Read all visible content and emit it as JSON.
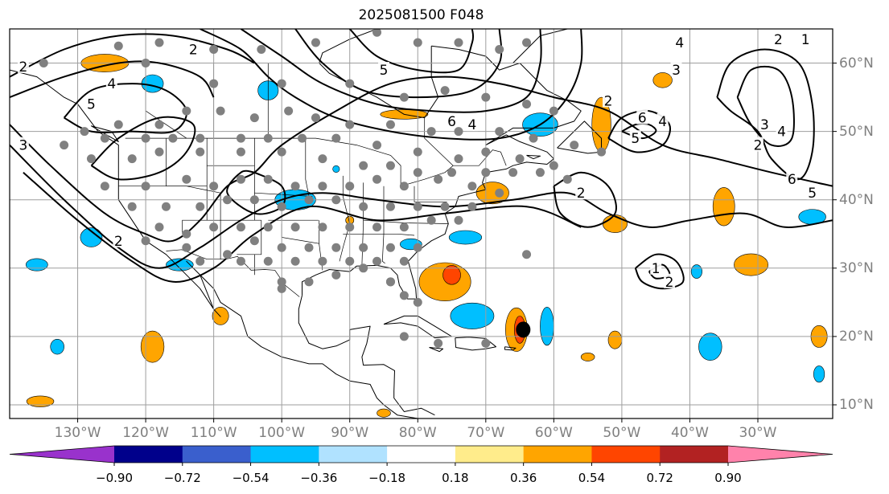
{
  "title": "2025081500 F048",
  "axes": {
    "longitude_ticks": [
      {
        "value": -130,
        "label": "130°W"
      },
      {
        "value": -120,
        "label": "120°W"
      },
      {
        "value": -110,
        "label": "110°W"
      },
      {
        "value": -100,
        "label": "100°W"
      },
      {
        "value": -90,
        "label": "90°W"
      },
      {
        "value": -80,
        "label": "80°W"
      },
      {
        "value": -70,
        "label": "70°W"
      },
      {
        "value": -60,
        "label": "60°W"
      },
      {
        "value": -50,
        "label": "50°W"
      },
      {
        "value": -40,
        "label": "40°W"
      },
      {
        "value": -30,
        "label": "30°W"
      }
    ],
    "latitude_ticks": [
      {
        "value": 60,
        "label": "60°N"
      },
      {
        "value": 50,
        "label": "50°N"
      },
      {
        "value": 40,
        "label": "40°N"
      },
      {
        "value": 30,
        "label": "30°N"
      },
      {
        "value": 20,
        "label": "20°N"
      },
      {
        "value": 10,
        "label": "10°N"
      }
    ],
    "lon_range": [
      -140,
      -19
    ],
    "lat_range": [
      8,
      65
    ],
    "grid": true,
    "tick_color": "#7f7f7f"
  },
  "colorbar": {
    "boundaries": [
      "−0.90",
      "−0.72",
      "−0.54",
      "−0.36",
      "−0.18",
      "0.18",
      "0.36",
      "0.54",
      "0.72",
      "0.90"
    ],
    "colors": [
      "#9932cc",
      "#00008b",
      "#3a5fcd",
      "#00bfff",
      "#b0e2ff",
      "#ffffff",
      "#ffec8b",
      "#ffa500",
      "#ff4500",
      "#b22222",
      "#ff82ab"
    ],
    "extend": "both"
  },
  "colors": {
    "contour": "#000000",
    "stations": "#808080",
    "storm": "#000000"
  },
  "contours": [
    {
      "label": "2",
      "at": [
        -113,
        62
      ]
    },
    {
      "label": "4",
      "at": [
        -125,
        57
      ]
    },
    {
      "label": "5",
      "at": [
        -128,
        54
      ]
    },
    {
      "label": "3",
      "at": [
        -138,
        48
      ]
    },
    {
      "label": "2",
      "at": [
        -138,
        59.5
      ]
    },
    {
      "label": "5",
      "at": [
        -85,
        59
      ]
    },
    {
      "label": "6",
      "at": [
        -75,
        51.5
      ]
    },
    {
      "label": "4",
      "at": [
        -72,
        51
      ]
    },
    {
      "label": "2",
      "at": [
        -52,
        54.5
      ]
    },
    {
      "label": "6",
      "at": [
        -47,
        52
      ]
    },
    {
      "label": "4",
      "at": [
        -44,
        51.5
      ]
    },
    {
      "label": "5",
      "at": [
        -48,
        49
      ]
    },
    {
      "label": "3",
      "at": [
        -29,
        51
      ]
    },
    {
      "label": "4",
      "at": [
        -26.5,
        50
      ]
    },
    {
      "label": "3",
      "at": [
        -42,
        59
      ]
    },
    {
      "label": "4",
      "at": [
        -41.5,
        63
      ]
    },
    {
      "label": "2",
      "at": [
        -27,
        63.5
      ]
    },
    {
      "label": "1",
      "at": [
        -23,
        63.5
      ]
    },
    {
      "label": "6",
      "at": [
        -25,
        43
      ]
    },
    {
      "label": "5",
      "at": [
        -22,
        41
      ]
    },
    {
      "label": "2",
      "at": [
        -30,
        48
      ]
    },
    {
      "label": "2",
      "at": [
        -56,
        41
      ]
    },
    {
      "label": "2",
      "at": [
        -124,
        34
      ]
    },
    {
      "label": "1",
      "at": [
        -45,
        30
      ]
    },
    {
      "label": "2",
      "at": [
        -43,
        28
      ]
    }
  ],
  "pressure_lines": [
    [
      [
        -140,
        51
      ],
      [
        -134,
        45
      ],
      [
        -126,
        38
      ],
      [
        -120,
        35
      ],
      [
        -116,
        34
      ],
      [
        -112,
        37
      ],
      [
        -108,
        42
      ],
      [
        -104,
        44
      ],
      [
        -100,
        48
      ],
      [
        -92,
        53
      ],
      [
        -84,
        57
      ],
      [
        -76,
        58
      ],
      [
        -68,
        57
      ],
      [
        -60,
        55
      ],
      [
        -52,
        53
      ],
      [
        -44,
        48
      ],
      [
        -36,
        46
      ],
      [
        -28,
        44
      ],
      [
        -19,
        42
      ]
    ],
    [
      [
        -140,
        48
      ],
      [
        -132,
        40
      ],
      [
        -124,
        33
      ],
      [
        -118,
        30
      ],
      [
        -112,
        33
      ],
      [
        -106,
        37
      ],
      [
        -100,
        40
      ],
      [
        -94,
        41
      ],
      [
        -86,
        40
      ],
      [
        -76,
        39
      ],
      [
        -66,
        40
      ],
      [
        -58,
        41
      ],
      [
        -52,
        38
      ],
      [
        -46,
        36
      ],
      [
        -40,
        37
      ],
      [
        -32,
        38
      ],
      [
        -26,
        36
      ],
      [
        -19,
        37
      ]
    ],
    [
      [
        -138,
        44
      ],
      [
        -130,
        37
      ],
      [
        -122,
        31
      ],
      [
        -116,
        28
      ],
      [
        -110,
        30
      ],
      [
        -104,
        35
      ],
      [
        -96,
        39
      ],
      [
        -86,
        37
      ],
      [
        -76,
        38
      ],
      [
        -64,
        39
      ],
      [
        -56,
        36
      ]
    ],
    [
      [
        -112,
        65
      ],
      [
        -106,
        62
      ],
      [
        -102,
        58
      ],
      [
        -98,
        55
      ],
      [
        -92,
        52
      ],
      [
        -84,
        50
      ],
      [
        -76,
        49
      ],
      [
        -68,
        49
      ],
      [
        -62,
        51
      ],
      [
        -58,
        55
      ],
      [
        -56,
        60
      ],
      [
        -56,
        65
      ]
    ],
    [
      [
        -106,
        65
      ],
      [
        -100,
        61
      ],
      [
        -94,
        57
      ],
      [
        -86,
        54
      ],
      [
        -78,
        53
      ],
      [
        -70,
        53
      ],
      [
        -64,
        55
      ],
      [
        -62,
        60
      ],
      [
        -62,
        65
      ]
    ],
    [
      [
        -98,
        65
      ],
      [
        -94,
        60
      ],
      [
        -88,
        56
      ],
      [
        -80,
        55
      ],
      [
        -72,
        56
      ],
      [
        -68,
        60
      ],
      [
        -68,
        65
      ]
    ],
    [
      [
        -90,
        65
      ],
      [
        -86,
        61
      ],
      [
        -80,
        59
      ],
      [
        -74,
        59
      ],
      [
        -72,
        63
      ],
      [
        -72,
        65
      ]
    ],
    [
      [
        -140,
        58
      ],
      [
        -132,
        62
      ],
      [
        -124,
        64
      ],
      [
        -116,
        64
      ],
      [
        -108,
        62
      ],
      [
        -104,
        60
      ]
    ],
    [
      [
        -140,
        55
      ],
      [
        -132,
        58
      ],
      [
        -124,
        60
      ],
      [
        -118,
        60
      ],
      [
        -112,
        58
      ],
      [
        -110,
        55
      ]
    ],
    [
      [
        -132,
        52
      ],
      [
        -128,
        56
      ],
      [
        -122,
        57
      ],
      [
        -117,
        56
      ],
      [
        -114,
        53
      ],
      [
        -116,
        50
      ],
      [
        -122,
        50
      ],
      [
        -128,
        50
      ],
      [
        -132,
        52
      ]
    ],
    [
      [
        -128,
        45
      ],
      [
        -124,
        49
      ],
      [
        -118,
        52
      ],
      [
        -113,
        51
      ],
      [
        -114,
        47
      ],
      [
        -118,
        44
      ],
      [
        -124,
        43
      ],
      [
        -128,
        45
      ]
    ],
    [
      [
        -104,
        44
      ],
      [
        -100,
        42
      ],
      [
        -100,
        39
      ],
      [
        -104,
        38
      ],
      [
        -108,
        41
      ],
      [
        -106,
        44
      ],
      [
        -104,
        44
      ]
    ],
    [
      [
        -52,
        49
      ],
      [
        -50,
        52
      ],
      [
        -46,
        53
      ],
      [
        -43,
        51
      ],
      [
        -44,
        48
      ],
      [
        -48,
        47
      ],
      [
        -52,
        49
      ]
    ],
    [
      [
        -50,
        50
      ],
      [
        -48,
        51
      ],
      [
        -46,
        51
      ],
      [
        -45,
        50
      ],
      [
        -47,
        49
      ],
      [
        -50,
        50
      ]
    ],
    [
      [
        -36,
        55
      ],
      [
        -34,
        60
      ],
      [
        -29,
        62
      ],
      [
        -24,
        60
      ],
      [
        -22,
        54
      ],
      [
        -22,
        47
      ],
      [
        -24,
        43
      ],
      [
        -28,
        46
      ],
      [
        -30,
        50
      ],
      [
        -34,
        53
      ],
      [
        -36,
        55
      ]
    ],
    [
      [
        -33,
        55
      ],
      [
        -31,
        59
      ],
      [
        -27,
        59
      ],
      [
        -25,
        55
      ],
      [
        -25,
        49
      ],
      [
        -28,
        48
      ],
      [
        -31,
        51
      ],
      [
        -33,
        55
      ]
    ],
    [
      [
        -60,
        42
      ],
      [
        -56,
        44
      ],
      [
        -52,
        42
      ],
      [
        -51,
        38
      ],
      [
        -55,
        36
      ],
      [
        -59,
        38
      ],
      [
        -60,
        42
      ]
    ],
    [
      [
        -48,
        30
      ],
      [
        -45,
        32
      ],
      [
        -42,
        31
      ],
      [
        -41,
        28
      ],
      [
        -44,
        27
      ],
      [
        -47,
        28
      ],
      [
        -48,
        30
      ]
    ],
    [
      [
        -46,
        29.5
      ],
      [
        -44,
        30.5
      ],
      [
        -43,
        29
      ],
      [
        -45,
        28.5
      ],
      [
        -46,
        29.5
      ]
    ]
  ],
  "anomaly_regions": [
    {
      "color": "#ffa500",
      "lon": -126,
      "lat": 60,
      "rx": 3.5,
      "ry": 1.3
    },
    {
      "color": "#00bfff",
      "lon": -119,
      "lat": 57,
      "rx": 1.6,
      "ry": 1.3
    },
    {
      "color": "#00bfff",
      "lon": -102,
      "lat": 56,
      "rx": 1.5,
      "ry": 1.4
    },
    {
      "color": "#ffa500",
      "lon": -82,
      "lat": 52.5,
      "rx": 3.5,
      "ry": 0.7
    },
    {
      "color": "#00bfff",
      "lon": -62,
      "lat": 51,
      "rx": 2.6,
      "ry": 1.7
    },
    {
      "color": "#ffa500",
      "lon": -53,
      "lat": 51,
      "rx": 1.4,
      "ry": 4.0
    },
    {
      "color": "#ffa500",
      "lon": -44,
      "lat": 57.5,
      "rx": 1.4,
      "ry": 1.1
    },
    {
      "color": "#ffa500",
      "lon": -69,
      "lat": 41,
      "rx": 2.4,
      "ry": 1.6
    },
    {
      "color": "#ffa500",
      "lon": -51,
      "lat": 36.5,
      "rx": 1.8,
      "ry": 1.3
    },
    {
      "color": "#00bfff",
      "lon": -98,
      "lat": 40,
      "rx": 3.0,
      "ry": 1.5
    },
    {
      "color": "#00bfff",
      "lon": -128,
      "lat": 34.5,
      "rx": 1.6,
      "ry": 1.4
    },
    {
      "color": "#00bfff",
      "lon": -136,
      "lat": 30.5,
      "rx": 1.6,
      "ry": 0.9
    },
    {
      "color": "#00bfff",
      "lon": -115,
      "lat": 30.5,
      "rx": 2.0,
      "ry": 0.9
    },
    {
      "color": "#00bfff",
      "lon": -81,
      "lat": 33.5,
      "rx": 1.6,
      "ry": 0.8
    },
    {
      "color": "#00bfff",
      "lon": -73,
      "lat": 34.5,
      "rx": 2.4,
      "ry": 1.0
    },
    {
      "color": "#ffa500",
      "lon": -76,
      "lat": 28,
      "rx": 3.8,
      "ry": 2.8
    },
    {
      "color": "#ff4500",
      "lon": -75,
      "lat": 29,
      "rx": 1.3,
      "ry": 1.4
    },
    {
      "color": "#00bfff",
      "lon": -72,
      "lat": 23,
      "rx": 3.2,
      "ry": 1.9
    },
    {
      "color": "#ffa500",
      "lon": -65.5,
      "lat": 21,
      "rx": 1.6,
      "ry": 3.2
    },
    {
      "color": "#ff4500",
      "lon": -65,
      "lat": 21,
      "rx": 0.8,
      "ry": 2.0
    },
    {
      "color": "#00bfff",
      "lon": -61,
      "lat": 21.5,
      "rx": 1.0,
      "ry": 2.8
    },
    {
      "color": "#ffa500",
      "lon": -51,
      "lat": 19.5,
      "rx": 1.0,
      "ry": 1.3
    },
    {
      "color": "#ffa500",
      "lon": -119,
      "lat": 18.5,
      "rx": 1.7,
      "ry": 2.3
    },
    {
      "color": "#00bfff",
      "lon": -133,
      "lat": 18.5,
      "rx": 1.0,
      "ry": 1.1
    },
    {
      "color": "#ffa500",
      "lon": -135.5,
      "lat": 10.5,
      "rx": 2.0,
      "ry": 0.8
    },
    {
      "color": "#ffa500",
      "lon": -109,
      "lat": 23,
      "rx": 1.2,
      "ry": 1.3
    },
    {
      "color": "#ffa500",
      "lon": -35,
      "lat": 39,
      "rx": 1.6,
      "ry": 2.8
    },
    {
      "color": "#ffa500",
      "lon": -31,
      "lat": 30.5,
      "rx": 2.5,
      "ry": 1.6
    },
    {
      "color": "#00bfff",
      "lon": -22,
      "lat": 37.5,
      "rx": 2.0,
      "ry": 1.1
    },
    {
      "color": "#00bfff",
      "lon": -37,
      "lat": 18.5,
      "rx": 1.7,
      "ry": 2.0
    },
    {
      "color": "#ffa500",
      "lon": -21,
      "lat": 20,
      "rx": 1.2,
      "ry": 1.6
    },
    {
      "color": "#00bfff",
      "lon": -21,
      "lat": 14.5,
      "rx": 0.8,
      "ry": 1.2
    },
    {
      "color": "#00bfff",
      "lon": -39,
      "lat": 29.5,
      "rx": 0.8,
      "ry": 1.0
    },
    {
      "color": "#ffa500",
      "lon": -55,
      "lat": 17,
      "rx": 1.0,
      "ry": 0.6
    },
    {
      "color": "#ffa500",
      "lon": -85,
      "lat": 8.8,
      "rx": 1.0,
      "ry": 0.6
    },
    {
      "color": "#ffa500",
      "lon": -90,
      "lat": 37,
      "rx": 0.6,
      "ry": 0.6
    },
    {
      "color": "#00bfff",
      "lon": -92,
      "lat": 44.5,
      "rx": 0.5,
      "ry": 0.5
    }
  ],
  "stations": [
    [
      -124,
      62.5
    ],
    [
      -118,
      63
    ],
    [
      -110,
      62
    ],
    [
      -103,
      62
    ],
    [
      -95,
      63
    ],
    [
      -86,
      64.5
    ],
    [
      -80,
      63
    ],
    [
      -74,
      63
    ],
    [
      -68,
      62
    ],
    [
      -64,
      63
    ],
    [
      -135,
      60
    ],
    [
      -120,
      60
    ],
    [
      -110,
      57
    ],
    [
      -100,
      57
    ],
    [
      -90,
      57
    ],
    [
      -82,
      55
    ],
    [
      -76,
      56
    ],
    [
      -70,
      55
    ],
    [
      -64,
      54
    ],
    [
      -60,
      53
    ],
    [
      -129,
      50
    ],
    [
      -124,
      51
    ],
    [
      -118,
      51
    ],
    [
      -114,
      53
    ],
    [
      -109,
      53
    ],
    [
      -104,
      52
    ],
    [
      -99,
      53
    ],
    [
      -95,
      52
    ],
    [
      -90,
      51
    ],
    [
      -84,
      51
    ],
    [
      -78,
      50
    ],
    [
      -74,
      50
    ],
    [
      -68,
      50
    ],
    [
      -63,
      49
    ],
    [
      -57,
      48
    ],
    [
      -53,
      47
    ],
    [
      -132,
      48
    ],
    [
      -126,
      49
    ],
    [
      -120,
      49
    ],
    [
      -116,
      49
    ],
    [
      -112,
      49
    ],
    [
      -106,
      49
    ],
    [
      -102,
      49
    ],
    [
      -97,
      49
    ],
    [
      -92,
      49
    ],
    [
      -86,
      48
    ],
    [
      -80,
      47
    ],
    [
      -74,
      46
    ],
    [
      -70,
      47
    ],
    [
      -65,
      46
    ],
    [
      -60,
      45
    ],
    [
      -128,
      46
    ],
    [
      -122,
      46
    ],
    [
      -118,
      47
    ],
    [
      -112,
      47
    ],
    [
      -106,
      47
    ],
    [
      -100,
      47
    ],
    [
      -94,
      46
    ],
    [
      -88,
      45
    ],
    [
      -84,
      45
    ],
    [
      -80,
      44
    ],
    [
      -75,
      44
    ],
    [
      -70,
      44
    ],
    [
      -66,
      44
    ],
    [
      -62,
      44
    ],
    [
      -58,
      43
    ],
    [
      -126,
      42
    ],
    [
      -120,
      42
    ],
    [
      -114,
      43
    ],
    [
      -110,
      42
    ],
    [
      -106,
      43
    ],
    [
      -102,
      43
    ],
    [
      -98,
      42
    ],
    [
      -94,
      42
    ],
    [
      -90,
      42
    ],
    [
      -86,
      43
    ],
    [
      -82,
      42
    ],
    [
      -77,
      43
    ],
    [
      -72,
      42
    ],
    [
      -68,
      41
    ],
    [
      -122,
      39
    ],
    [
      -117,
      39
    ],
    [
      -112,
      39
    ],
    [
      -108,
      40
    ],
    [
      -104,
      40
    ],
    [
      -100,
      39
    ],
    [
      -96,
      40
    ],
    [
      -92,
      40
    ],
    [
      -88,
      39
    ],
    [
      -84,
      39
    ],
    [
      -80,
      39
    ],
    [
      -76,
      39
    ],
    [
      -72,
      39
    ],
    [
      -118,
      36
    ],
    [
      -114,
      35
    ],
    [
      -110,
      36
    ],
    [
      -106,
      36
    ],
    [
      -102,
      36
    ],
    [
      -98,
      36
    ],
    [
      -94,
      36
    ],
    [
      -90,
      36
    ],
    [
      -86,
      36
    ],
    [
      -82,
      36
    ],
    [
      -78,
      37
    ],
    [
      -74,
      37
    ],
    [
      -120,
      34
    ],
    [
      -114,
      33
    ],
    [
      -108,
      32
    ],
    [
      -104,
      34
    ],
    [
      -100,
      33
    ],
    [
      -96,
      33
    ],
    [
      -92,
      33
    ],
    [
      -88,
      33
    ],
    [
      -84,
      33
    ],
    [
      -80,
      33
    ],
    [
      -112,
      31
    ],
    [
      -106,
      31
    ],
    [
      -102,
      31
    ],
    [
      -98,
      31
    ],
    [
      -94,
      31
    ],
    [
      -90,
      31
    ],
    [
      -86,
      31
    ],
    [
      -82,
      31
    ],
    [
      -100,
      28
    ],
    [
      -96,
      28
    ],
    [
      -92,
      29
    ],
    [
      -88,
      30
    ],
    [
      -84,
      28
    ],
    [
      -82,
      26
    ],
    [
      -80,
      25
    ],
    [
      -100,
      27
    ],
    [
      -82,
      20
    ],
    [
      -77,
      19
    ],
    [
      -70,
      19
    ],
    [
      -64,
      32
    ],
    [
      -84,
      28
    ]
  ],
  "storm_center": {
    "lon": -64.5,
    "lat": 21
  }
}
